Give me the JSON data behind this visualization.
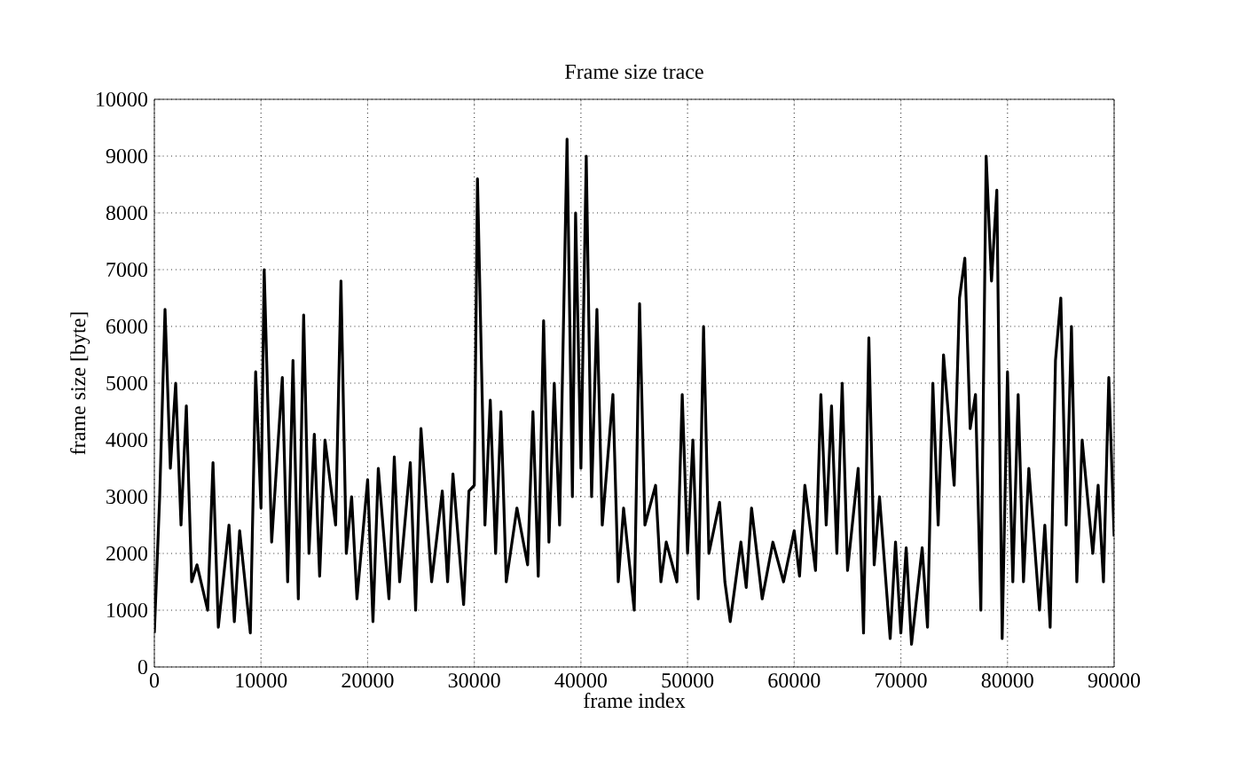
{
  "chart_data": {
    "type": "line",
    "title": "Frame size trace",
    "xlabel": "frame index",
    "ylabel": "frame size [byte]",
    "xlim": [
      0,
      90000
    ],
    "xticks": [
      0,
      10000,
      20000,
      30000,
      40000,
      50000,
      60000,
      70000,
      80000,
      90000
    ],
    "ylim": [
      0,
      10000
    ],
    "yticks": [
      0,
      1000,
      2000,
      3000,
      4000,
      5000,
      6000,
      7000,
      8000,
      9000,
      10000
    ],
    "grid": true,
    "marker": "none",
    "line_style": "solid",
    "series": [
      {
        "color": "#000000",
        "x": [
          0,
          500,
          1000,
          1500,
          2000,
          2500,
          3000,
          3500,
          4000,
          5000,
          5500,
          6000,
          7000,
          7500,
          8000,
          9000,
          9500,
          10000,
          10300,
          11000,
          12000,
          12500,
          13000,
          13500,
          14000,
          14500,
          15000,
          15500,
          16000,
          17000,
          17500,
          18000,
          18500,
          19000,
          20000,
          20500,
          21000,
          22000,
          22500,
          23000,
          24000,
          24500,
          25000,
          26000,
          27000,
          27500,
          28000,
          29000,
          29500,
          30000,
          30300,
          31000,
          31500,
          32000,
          32500,
          33000,
          34000,
          35000,
          35500,
          36000,
          36500,
          37000,
          37500,
          38000,
          38700,
          39200,
          39500,
          40000,
          40500,
          41000,
          41500,
          42000,
          43000,
          43500,
          44000,
          45000,
          45500,
          46000,
          47000,
          47500,
          48000,
          49000,
          49500,
          50000,
          50500,
          51000,
          51500,
          52000,
          53000,
          53500,
          54000,
          55000,
          55500,
          56000,
          57000,
          58000,
          59000,
          60000,
          60500,
          61000,
          62000,
          62500,
          63000,
          63500,
          64000,
          64500,
          65000,
          66000,
          66500,
          67000,
          67500,
          68000,
          69000,
          69500,
          70000,
          70500,
          71000,
          72000,
          72500,
          73000,
          73500,
          74000,
          75000,
          75500,
          76000,
          76500,
          77000,
          77500,
          78000,
          78500,
          79000,
          79500,
          80000,
          80500,
          81000,
          81500,
          82000,
          83000,
          83500,
          84000,
          84500,
          85000,
          85500,
          86000,
          86500,
          87000,
          88000,
          88500,
          89000,
          89500,
          90000
        ],
        "values": [
          600,
          3000,
          6300,
          3500,
          5000,
          2500,
          4600,
          1500,
          1800,
          1000,
          3600,
          700,
          2500,
          800,
          2400,
          600,
          5200,
          2800,
          7000,
          2200,
          5100,
          1500,
          5400,
          1200,
          6200,
          2000,
          4100,
          1600,
          4000,
          2500,
          6800,
          2000,
          3000,
          1200,
          3300,
          800,
          3500,
          1200,
          3700,
          1500,
          3600,
          1000,
          4200,
          1500,
          3100,
          1500,
          3400,
          1100,
          3100,
          3200,
          8600,
          2500,
          4700,
          2000,
          4500,
          1500,
          2800,
          1800,
          4500,
          1600,
          6100,
          2200,
          5000,
          2500,
          9300,
          3000,
          8000,
          3500,
          9000,
          3000,
          6300,
          2500,
          4800,
          1500,
          2800,
          1000,
          6400,
          2500,
          3200,
          1500,
          2200,
          1500,
          4800,
          2000,
          4000,
          1200,
          6000,
          2000,
          2900,
          1500,
          800,
          2200,
          1400,
          2800,
          1200,
          2200,
          1500,
          2400,
          1600,
          3200,
          1700,
          4800,
          2500,
          4600,
          2000,
          5000,
          1700,
          3500,
          600,
          5800,
          1800,
          3000,
          500,
          2200,
          600,
          2100,
          400,
          2100,
          700,
          5000,
          2500,
          5500,
          3200,
          6500,
          7200,
          4200,
          4800,
          1000,
          9000,
          6800,
          8400,
          500,
          5200,
          1500,
          4800,
          1500,
          3500,
          1000,
          2500,
          700,
          5400,
          6500,
          2500,
          6000,
          1500,
          4000,
          2000,
          3200,
          1500,
          5100,
          2300
        ]
      }
    ]
  }
}
